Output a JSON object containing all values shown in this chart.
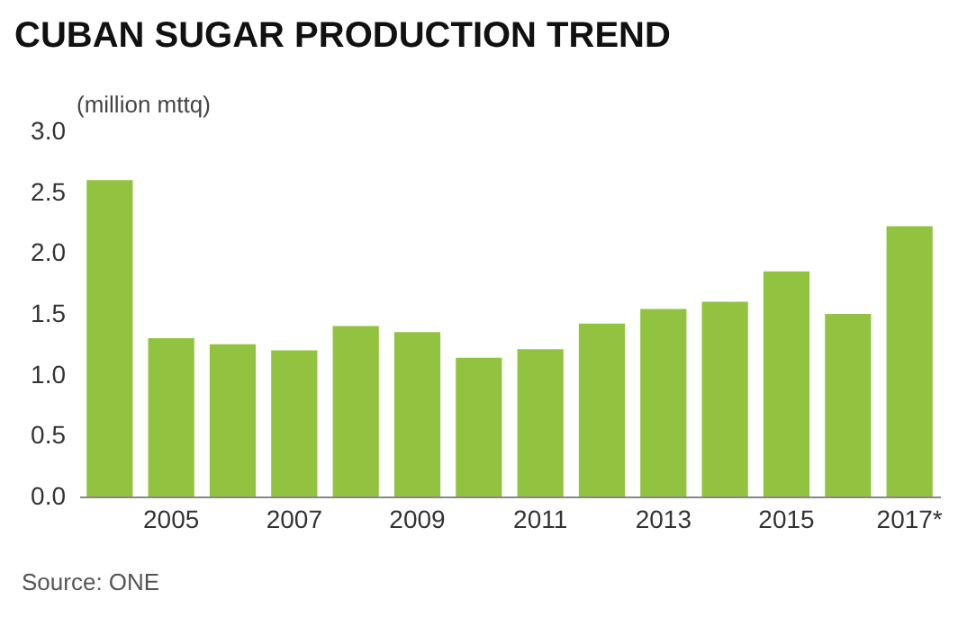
{
  "chart_data": {
    "type": "bar",
    "title": "CUBAN SUGAR PRODUCTION TREND",
    "ylabel": "(million mttq)",
    "categories": [
      null,
      "2005",
      null,
      "2007",
      null,
      "2009",
      null,
      "2011",
      null,
      "2013",
      null,
      "2015",
      null,
      "2017*"
    ],
    "values": [
      2.6,
      1.3,
      1.25,
      1.2,
      1.4,
      1.35,
      1.14,
      1.21,
      1.42,
      1.54,
      1.6,
      1.85,
      1.5,
      2.22
    ],
    "color": "#92c340",
    "ylim": [
      0,
      3
    ],
    "yticks": [
      {
        "value": 0,
        "label": "0.0"
      },
      0.5,
      {
        "value": 1,
        "label": "1.0"
      },
      1.5,
      {
        "value": 2,
        "label": "2.0"
      },
      2.5,
      {
        "value": 3,
        "label": "3.0"
      }
    ],
    "annotations": [
      "Source: ONE"
    ]
  }
}
